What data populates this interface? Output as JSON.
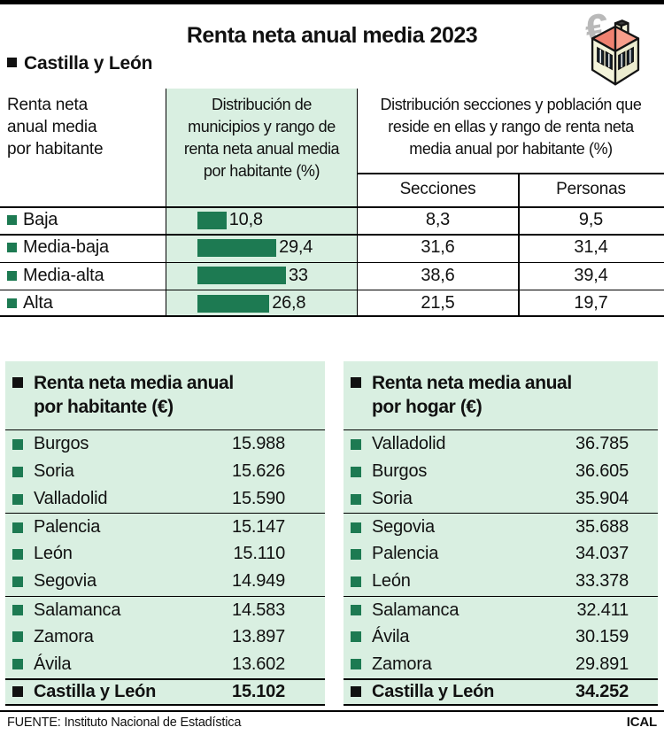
{
  "title": "Renta neta anual media 2023",
  "region": {
    "label": "Castilla y León"
  },
  "icons": {
    "euro_glyph": "€"
  },
  "colors": {
    "light_green": "#d9efe1",
    "dark_green": "#1d7a52",
    "roof_red": "#ef8170",
    "wall_cream": "#f4f4da",
    "euro_gray": "#b9b9b9"
  },
  "table": {
    "col1_header_lines": [
      "Renta neta",
      "anual media",
      "por habitante"
    ],
    "col2_header_lines": [
      "Distribución de",
      "municipios y rango de",
      "renta neta anual media",
      "por habitante (%)"
    ],
    "col3_header_lines": [
      "Distribución secciones y población que",
      "reside en ellas y rango de renta neta",
      "media anual por habitante (%)"
    ],
    "subheaders": {
      "secciones": "Secciones",
      "personas": "Personas"
    },
    "rows": [
      {
        "label": "Baja",
        "pct": 10.8,
        "pct_label": "10,8",
        "secciones": "8,3",
        "personas": "9,5"
      },
      {
        "label": "Media-baja",
        "pct": 29.4,
        "pct_label": "29,4",
        "secciones": "31,6",
        "personas": "31,4"
      },
      {
        "label": "Media-alta",
        "pct": 33,
        "pct_label": "33",
        "secciones": "38,6",
        "personas": "39,4"
      },
      {
        "label": "Alta",
        "pct": 26.8,
        "pct_label": "26,8",
        "secciones": "21,5",
        "personas": "19,7"
      }
    ]
  },
  "panels": [
    {
      "title_lines": [
        "Renta neta media anual",
        "por habitante (€)"
      ],
      "rows": [
        {
          "label": "Burgos",
          "value": "15.988"
        },
        {
          "label": "Soria",
          "value": "15.626"
        },
        {
          "label": "Valladolid",
          "value": "15.590"
        },
        {
          "label": "Palencia",
          "value": "15.147"
        },
        {
          "label": "León",
          "value": "15.110"
        },
        {
          "label": "Segovia",
          "value": "14.949"
        },
        {
          "label": "Salamanca",
          "value": "14.583"
        },
        {
          "label": "Zamora",
          "value": "13.897"
        },
        {
          "label": "Ávila",
          "value": "13.602"
        }
      ],
      "total": {
        "label": "Castilla y León",
        "value": "15.102"
      }
    },
    {
      "title_lines": [
        "Renta neta media anual",
        "por hogar (€)"
      ],
      "rows": [
        {
          "label": "Valladolid",
          "value": "36.785"
        },
        {
          "label": "Burgos",
          "value": "36.605"
        },
        {
          "label": "Soria",
          "value": "35.904"
        },
        {
          "label": "Segovia",
          "value": "35.688"
        },
        {
          "label": "Palencia",
          "value": "34.037"
        },
        {
          "label": "León",
          "value": "33.378"
        },
        {
          "label": "Salamanca",
          "value": "32.411"
        },
        {
          "label": "Ávila",
          "value": "30.159"
        },
        {
          "label": "Zamora",
          "value": "29.891"
        }
      ],
      "total": {
        "label": "Castilla y León",
        "value": "34.252"
      }
    }
  ],
  "footer": {
    "source": "FUENTE: Instituto Nacional de Estadística",
    "credit": "ICAL"
  },
  "chart_data": [
    {
      "type": "bar",
      "title": "Distribución de municipios y rango de renta neta anual media por habitante (%)",
      "categories": [
        "Baja",
        "Media-baja",
        "Media-alta",
        "Alta"
      ],
      "values": [
        10.8,
        29.4,
        33,
        26.8
      ],
      "xlabel": "",
      "ylabel": "",
      "xlim": [
        0,
        40
      ],
      "orientation": "horizontal",
      "bar_color": "#1d7a52",
      "grid": false,
      "legend": "none"
    },
    {
      "type": "table",
      "title": "Distribución secciones y población que reside en ellas y rango de renta neta media anual por habitante (%)",
      "columns": [
        "Secciones",
        "Personas"
      ],
      "categories": [
        "Baja",
        "Media-baja",
        "Media-alta",
        "Alta"
      ],
      "rows": [
        [
          8.3,
          9.5
        ],
        [
          31.6,
          31.4
        ],
        [
          38.6,
          39.4
        ],
        [
          21.5,
          19.7
        ]
      ]
    },
    {
      "type": "table",
      "title": "Renta neta media anual por habitante (€)",
      "categories": [
        "Burgos",
        "Soria",
        "Valladolid",
        "Palencia",
        "León",
        "Segovia",
        "Salamanca",
        "Zamora",
        "Ávila",
        "Castilla y León"
      ],
      "values": [
        15988,
        15626,
        15590,
        15147,
        15110,
        14949,
        14583,
        13897,
        13602,
        15102
      ]
    },
    {
      "type": "table",
      "title": "Renta neta media anual por hogar (€)",
      "categories": [
        "Valladolid",
        "Burgos",
        "Soria",
        "Segovia",
        "Palencia",
        "León",
        "Salamanca",
        "Ávila",
        "Zamora",
        "Castilla y León"
      ],
      "values": [
        36785,
        36605,
        35904,
        35688,
        34037,
        33378,
        32411,
        30159,
        29891,
        34252
      ]
    }
  ]
}
